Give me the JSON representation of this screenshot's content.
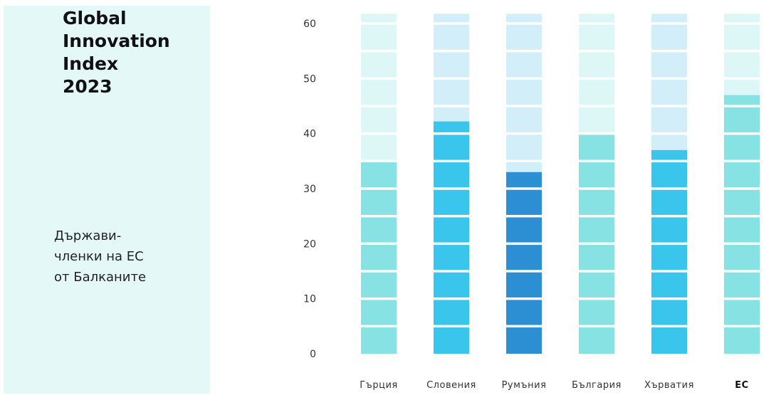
{
  "panel": {
    "title": "Global\nInnovation\nIndex\n2023",
    "subtitle": " Държави-\nчленки на ЕС\nот Балканите"
  },
  "chart_data": {
    "type": "bar",
    "categories": [
      "Гърция",
      "Словения",
      "Румъния",
      "България",
      "Хърватия",
      "ЕС"
    ],
    "values": [
      35.2,
      42.2,
      33.0,
      40.0,
      37.0,
      47.0
    ],
    "ylim": [
      0,
      62
    ],
    "yticks": [
      0,
      10,
      20,
      30,
      40,
      50,
      60
    ],
    "bold_categories": [
      "ЕС"
    ],
    "grid": false,
    "colors": {
      "Гърция": {
        "fill": "#87e3e3",
        "empty": "#ddf7f7"
      },
      "Словения": {
        "fill": "#3ac6ec",
        "empty": "#d2eef9"
      },
      "Румъния": {
        "fill": "#2c8fd4",
        "empty": "#d2eef9"
      },
      "България": {
        "fill": "#87e3e3",
        "empty": "#ddf7f7"
      },
      "Хърватия": {
        "fill": "#3ac6ec",
        "empty": "#d2eef9"
      },
      "ЕС": {
        "fill": "#87e3e3",
        "empty": "#ddf7f7"
      }
    }
  }
}
